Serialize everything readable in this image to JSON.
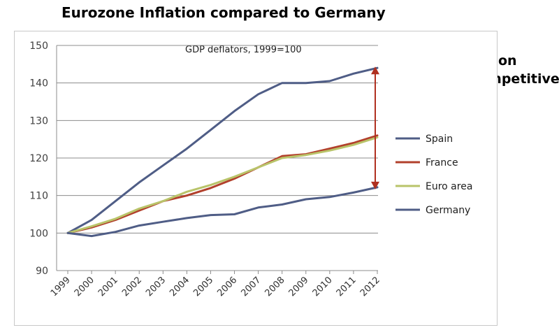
{
  "header": {
    "title": "Eurozone Inflation compared to Germany"
  },
  "annotation": {
    "line1": "Higher inflation",
    "line2": "Makes uncompetitive",
    "arrow_color": "#b03020",
    "arrow_from": 144,
    "arrow_to": 112
  },
  "chart_data": {
    "type": "line",
    "subtitle": "GDP deflators, 1999=100",
    "x": [
      "1999",
      "2000",
      "2001",
      "2002",
      "2003",
      "2004",
      "2005",
      "2006",
      "2007",
      "2008",
      "2009",
      "2010",
      "2011",
      "2012"
    ],
    "ylim": [
      90,
      150
    ],
    "yticks": [
      90,
      100,
      110,
      120,
      130,
      140,
      150
    ],
    "grid": true,
    "legend_position": "right",
    "series": [
      {
        "name": "Spain",
        "color": "#4f5d86",
        "values": [
          100,
          103.5,
          108.5,
          113.5,
          118,
          122.5,
          127.5,
          132.5,
          137,
          140,
          140,
          140.5,
          142.5,
          144
        ]
      },
      {
        "name": "France",
        "color": "#b2402c",
        "values": [
          100,
          101.5,
          103.5,
          106,
          108.5,
          110,
          112,
          114.5,
          117.5,
          120.5,
          121,
          122.5,
          124,
          126
        ]
      },
      {
        "name": "Euro area",
        "color": "#b9c46a",
        "values": [
          100,
          101.8,
          103.8,
          106.5,
          108.5,
          111,
          112.8,
          115,
          117.5,
          120,
          120.8,
          122,
          123.5,
          125.5
        ]
      },
      {
        "name": "Germany",
        "color": "#4f5d86",
        "values": [
          100,
          99.2,
          100.3,
          102,
          103,
          104,
          104.8,
          105,
          106.8,
          107.6,
          109,
          109.6,
          110.8,
          112.2
        ]
      }
    ]
  }
}
